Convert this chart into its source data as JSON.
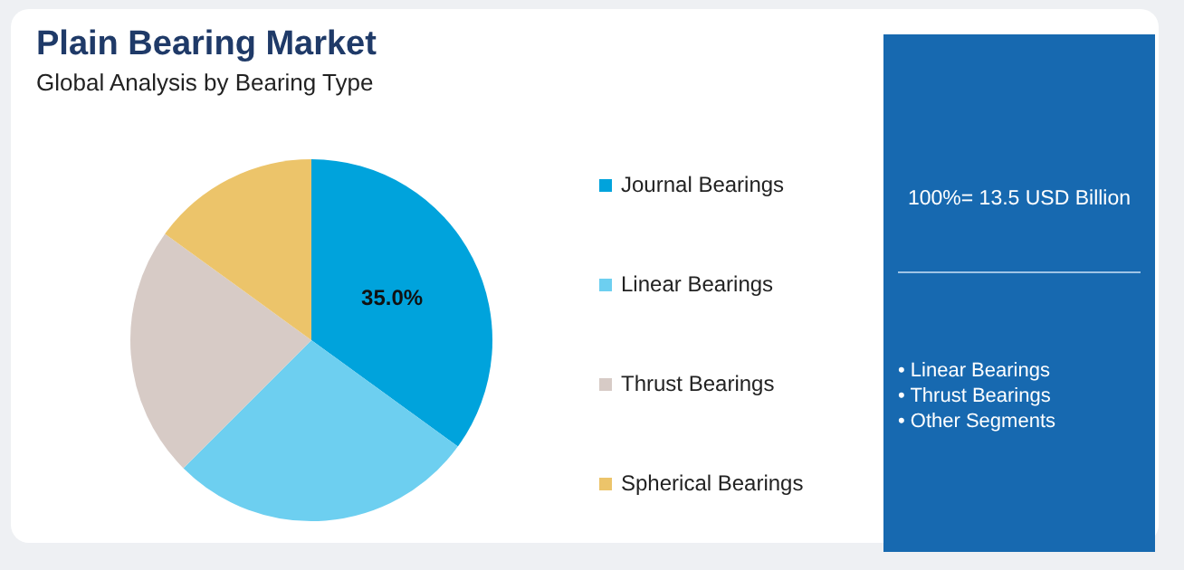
{
  "chart_data": {
    "type": "pie",
    "title": "Plain Bearing Market",
    "subtitle": "Global Analysis by Bearing Type",
    "categories": [
      "Journal Bearings",
      "Linear Bearings",
      "Thrust Bearings",
      "Spherical Bearings"
    ],
    "values": [
      35,
      27.5,
      22.5,
      15
    ],
    "colors": [
      "#00a3dc",
      "#6dcff0",
      "#d7cbc6",
      "#ecc46a"
    ],
    "value_labels": [
      "35.0%",
      null,
      null,
      null
    ],
    "legend": "right",
    "annotations": [
      "100%= 13.5 USD Billion",
      "• Linear Bearings",
      "• Thrust Bearings",
      "• Other Segments"
    ]
  }
}
